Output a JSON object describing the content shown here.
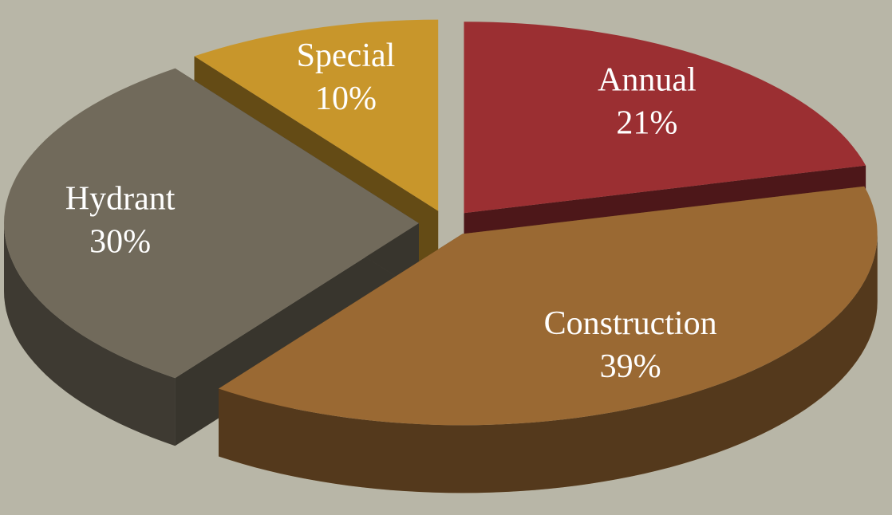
{
  "chart_data": {
    "type": "pie",
    "categories": [
      "Annual",
      "Construction",
      "Hydrant",
      "Special"
    ],
    "values": [
      21,
      39,
      30,
      10
    ],
    "value_labels": [
      "21%",
      "39%",
      "30%",
      "10%"
    ],
    "colors": [
      "#9b2f32",
      "#9a6933",
      "#716a5b",
      "#c8962b"
    ],
    "three_d": true,
    "exploded": true
  }
}
